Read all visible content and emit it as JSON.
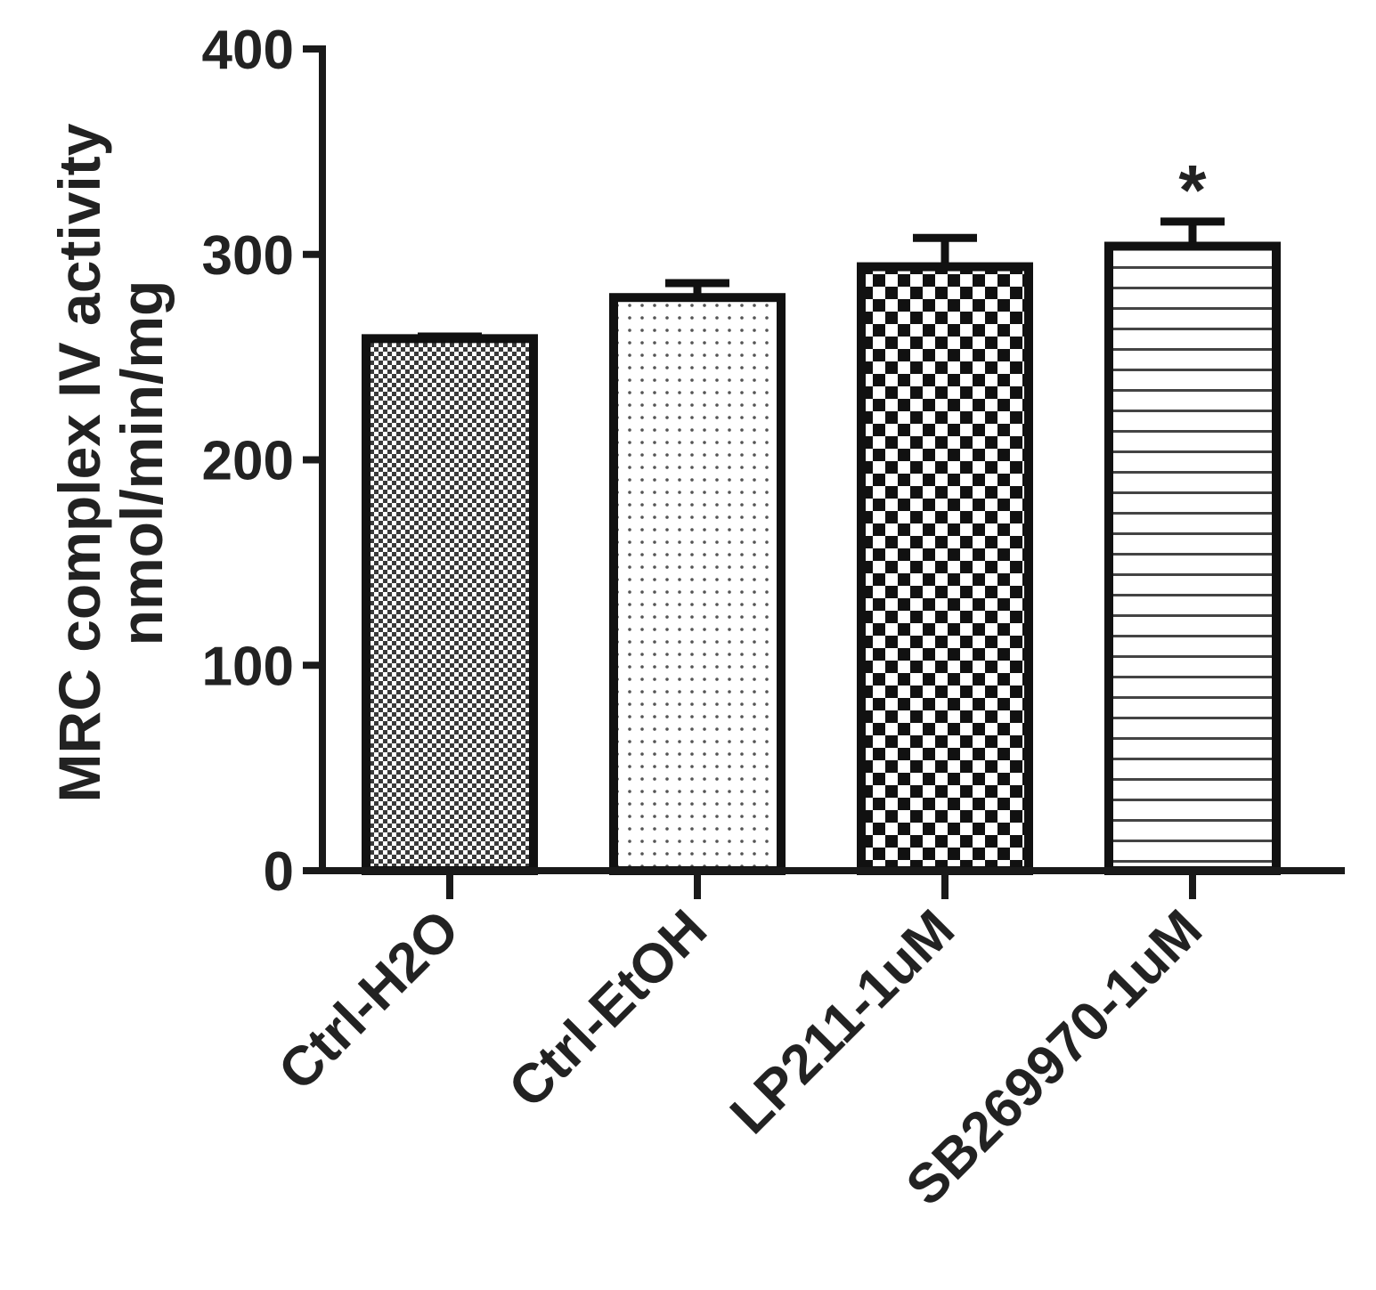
{
  "chart_data": {
    "type": "bar",
    "title": "",
    "xlabel": "",
    "ylabel_lines": [
      "MRC complex  IV activity",
      "nmol/min/mg"
    ],
    "ylim": [
      0,
      400
    ],
    "yticks": [
      0,
      100,
      200,
      300,
      400
    ],
    "categories": [
      "Ctrl-H2O",
      "Ctrl-EtOH",
      "LP211-1uM",
      "SB269970-1uM"
    ],
    "values": [
      259,
      279,
      294,
      304
    ],
    "errors": [
      1,
      7,
      14,
      12
    ],
    "patterns": [
      "fine-checker",
      "dots",
      "large-checker",
      "horizontal-lines"
    ],
    "annotations": [
      {
        "category": "SB269970-1uM",
        "text": "*"
      }
    ],
    "grid": false,
    "legend": "none"
  }
}
